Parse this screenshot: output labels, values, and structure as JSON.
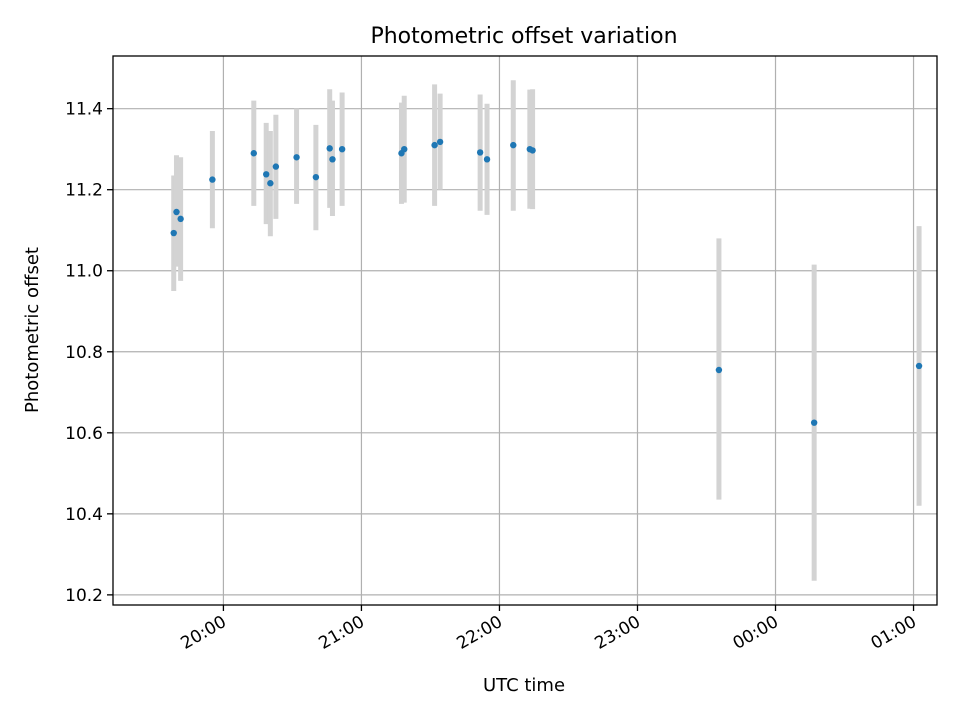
{
  "chart_data": {
    "type": "scatter",
    "title": "Photometric offset variation",
    "xlabel": "UTC time",
    "ylabel": "Photometric offset",
    "grid": true,
    "x_unit": "hours since 19:00 UTC",
    "xlim": [
      0.2,
      6.17
    ],
    "ylim": [
      10.175,
      11.53
    ],
    "x_ticks": [
      {
        "value": 1,
        "label": "20:00"
      },
      {
        "value": 2,
        "label": "21:00"
      },
      {
        "value": 3,
        "label": "22:00"
      },
      {
        "value": 4,
        "label": "23:00"
      },
      {
        "value": 5,
        "label": "00:00"
      },
      {
        "value": 6,
        "label": "01:00"
      }
    ],
    "y_ticks": [
      {
        "value": 10.2,
        "label": "10.2"
      },
      {
        "value": 10.4,
        "label": "10.4"
      },
      {
        "value": 10.6,
        "label": "10.6"
      },
      {
        "value": 10.8,
        "label": "10.8"
      },
      {
        "value": 11.0,
        "label": "11.0"
      },
      {
        "value": 11.2,
        "label": "11.2"
      },
      {
        "value": 11.4,
        "label": "11.4"
      }
    ],
    "colors": {
      "point": "#1f77b4",
      "errorbar": "#d3d3d3"
    },
    "points": [
      {
        "x": 0.64,
        "y": 11.093,
        "err_low": 10.95,
        "err_high": 11.235
      },
      {
        "x": 0.66,
        "y": 11.145,
        "err_low": 11.01,
        "err_high": 11.285
      },
      {
        "x": 0.69,
        "y": 11.128,
        "err_low": 10.975,
        "err_high": 11.28
      },
      {
        "x": 0.92,
        "y": 11.225,
        "err_low": 11.105,
        "err_high": 11.345
      },
      {
        "x": 1.22,
        "y": 11.29,
        "err_low": 11.16,
        "err_high": 11.42
      },
      {
        "x": 1.31,
        "y": 11.238,
        "err_low": 11.115,
        "err_high": 11.365
      },
      {
        "x": 1.34,
        "y": 11.216,
        "err_low": 11.085,
        "err_high": 11.345
      },
      {
        "x": 1.38,
        "y": 11.257,
        "err_low": 11.128,
        "err_high": 11.385
      },
      {
        "x": 1.53,
        "y": 11.28,
        "err_low": 11.165,
        "err_high": 11.4
      },
      {
        "x": 1.67,
        "y": 11.231,
        "err_low": 11.1,
        "err_high": 11.36
      },
      {
        "x": 1.77,
        "y": 11.302,
        "err_low": 11.155,
        "err_high": 11.448
      },
      {
        "x": 1.79,
        "y": 11.275,
        "err_low": 11.135,
        "err_high": 11.42
      },
      {
        "x": 1.86,
        "y": 11.3,
        "err_low": 11.16,
        "err_high": 11.44
      },
      {
        "x": 2.29,
        "y": 11.29,
        "err_low": 11.165,
        "err_high": 11.415
      },
      {
        "x": 2.31,
        "y": 11.3,
        "err_low": 11.168,
        "err_high": 11.432
      },
      {
        "x": 2.53,
        "y": 11.31,
        "err_low": 11.16,
        "err_high": 11.46
      },
      {
        "x": 2.57,
        "y": 11.318,
        "err_low": 11.2,
        "err_high": 11.437
      },
      {
        "x": 2.86,
        "y": 11.292,
        "err_low": 11.148,
        "err_high": 11.435
      },
      {
        "x": 2.91,
        "y": 11.275,
        "err_low": 11.138,
        "err_high": 11.412
      },
      {
        "x": 3.1,
        "y": 11.31,
        "err_low": 11.148,
        "err_high": 11.47
      },
      {
        "x": 3.22,
        "y": 11.3,
        "err_low": 11.153,
        "err_high": 11.447
      },
      {
        "x": 3.24,
        "y": 11.297,
        "err_low": 11.152,
        "err_high": 11.448
      },
      {
        "x": 4.59,
        "y": 10.755,
        "err_low": 10.435,
        "err_high": 11.08
      },
      {
        "x": 5.28,
        "y": 10.625,
        "err_low": 10.235,
        "err_high": 11.015
      },
      {
        "x": 6.04,
        "y": 10.765,
        "err_low": 10.42,
        "err_high": 11.11
      }
    ]
  }
}
